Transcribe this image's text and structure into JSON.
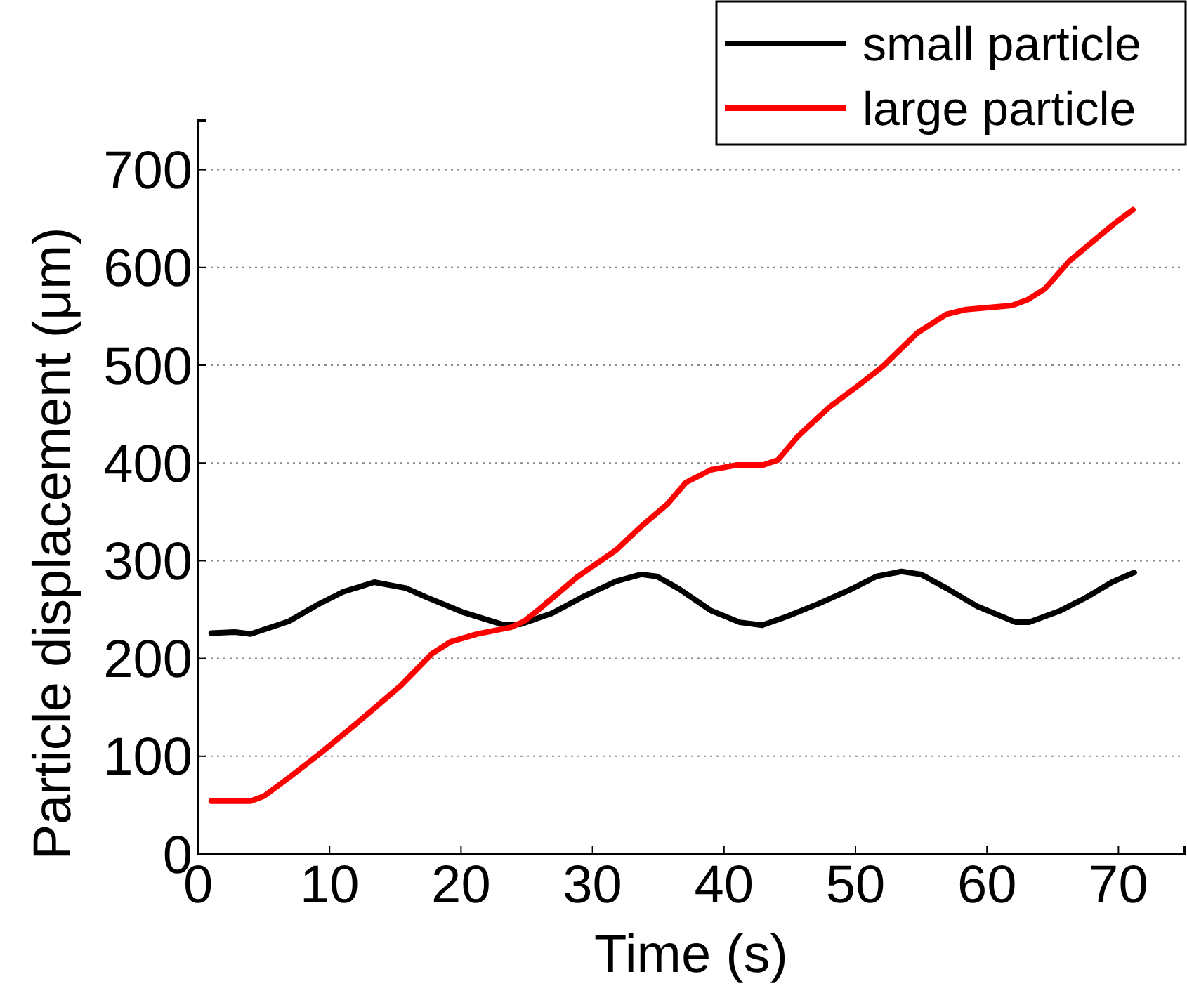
{
  "chart_data": {
    "type": "line",
    "xlabel": "Time (s)",
    "ylabel": "Particle displacement (μm)",
    "xlim": [
      0,
      75
    ],
    "ylim": [
      0,
      750
    ],
    "xticks": [
      0,
      10,
      20,
      30,
      40,
      50,
      60,
      70
    ],
    "yticks": [
      0,
      100,
      200,
      300,
      400,
      500,
      600,
      700
    ],
    "grid": "y",
    "legend": "top right",
    "line_style": "solid",
    "marker": "none",
    "series": [
      {
        "name": "small particle",
        "color": "#000000",
        "x": [
          1,
          2.8,
          4,
          6.9,
          9.1,
          11,
          13.4,
          15.8,
          17.3,
          20.2,
          23.1,
          24.5,
          26.9,
          29.4,
          31.8,
          33.7,
          34.9,
          36.6,
          39,
          41.2,
          42.9,
          44.8,
          47.2,
          49.7,
          51.6,
          53.5,
          55,
          56.9,
          59.3,
          62.2,
          63.2,
          65.6,
          67.5,
          69.5,
          71.2
        ],
        "values": [
          226,
          227,
          225,
          238,
          255,
          268,
          278,
          272,
          263,
          247,
          235,
          235,
          246,
          264,
          279,
          286,
          284,
          271,
          249,
          237,
          234,
          243,
          256,
          271,
          284,
          289,
          286,
          272,
          253,
          237,
          237,
          249,
          262,
          278,
          288
        ]
      },
      {
        "name": "large particle",
        "color": "#ff0000",
        "x": [
          1,
          4,
          5,
          7.1,
          9.3,
          12,
          13.4,
          15.4,
          17.8,
          19.2,
          21.2,
          23.8,
          24.8,
          26,
          28.9,
          31.8,
          33.7,
          35.7,
          37.1,
          39,
          41,
          43,
          44.1,
          45.6,
          48,
          50.1,
          52.1,
          54.7,
          56.9,
          58.4,
          61.9,
          63.1,
          64.4,
          66.3,
          68,
          69.7,
          71.1
        ],
        "values": [
          54,
          54,
          59,
          80,
          103,
          133,
          149,
          172,
          205,
          217,
          225,
          232,
          238,
          251,
          284,
          311,
          335,
          358,
          380,
          393,
          398,
          398,
          403,
          427,
          457,
          478,
          499,
          533,
          552,
          557,
          561,
          567,
          578,
          607,
          626,
          645,
          659
        ]
      }
    ]
  }
}
